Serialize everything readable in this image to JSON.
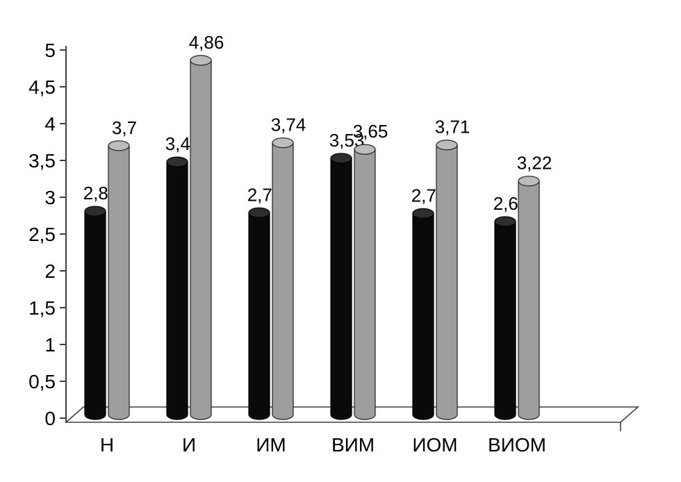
{
  "page": {
    "background": "#ffffff"
  },
  "chart_data": {
    "type": "bar",
    "style": "3d-cylinder",
    "title": "",
    "xlabel": "",
    "ylabel": "",
    "categories": [
      "Н",
      "И",
      "ИМ",
      "ВИМ",
      "ИОМ",
      "ВИОМ"
    ],
    "series": [
      {
        "name": "series-dark",
        "color": "#0a0a0a",
        "top_color": "#2e2e2e",
        "outline": "#000000",
        "values": [
          2.81,
          3.48,
          2.79,
          3.53,
          2.78,
          2.67
        ],
        "labels": [
          "2,81",
          "3,48",
          "2,79",
          "3,53",
          "2,78",
          "2,67"
        ]
      },
      {
        "name": "series-gray",
        "color": "#9e9e9e",
        "top_color": "#bcbcbc",
        "outline": "#1f1f1f",
        "values": [
          3.7,
          4.86,
          3.74,
          3.65,
          3.71,
          3.22
        ],
        "labels": [
          "3,7",
          "4,86",
          "3,74",
          "3,65",
          "3,71",
          "3,22"
        ]
      }
    ],
    "ylim": [
      0,
      5
    ],
    "ytick_step": 0.5,
    "yticks": [
      {
        "v": 0,
        "label": "0"
      },
      {
        "v": 0.5,
        "label": "0,5"
      },
      {
        "v": 1,
        "label": "1"
      },
      {
        "v": 1.5,
        "label": "1,5"
      },
      {
        "v": 2,
        "label": "2"
      },
      {
        "v": 2.5,
        "label": "2,5"
      },
      {
        "v": 3,
        "label": "3"
      },
      {
        "v": 3.5,
        "label": "3,5"
      },
      {
        "v": 4,
        "label": "4"
      },
      {
        "v": 4.5,
        "label": "4,5"
      },
      {
        "v": 5,
        "label": "5"
      }
    ],
    "grid": false,
    "legend": "none",
    "axis_color": "#3f3f3f",
    "text_color": "#000000"
  }
}
